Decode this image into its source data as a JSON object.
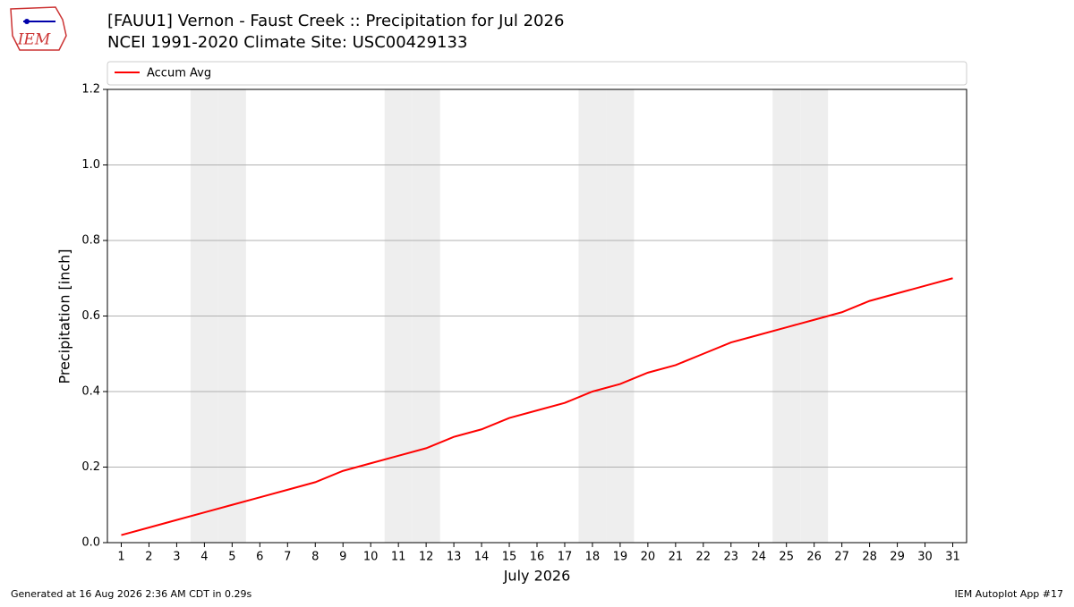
{
  "logo": "IEM",
  "chart_data": {
    "type": "line",
    "title": "[FAUU1] Vernon - Faust Creek :: Precipitation for Jul 2026",
    "subtitle": "NCEI 1991-2020 Climate Site: USC00429133",
    "x_label": "July 2026",
    "y_label": "Precipitation [inch]",
    "x": [
      1,
      2,
      3,
      4,
      5,
      6,
      7,
      8,
      9,
      10,
      11,
      12,
      13,
      14,
      15,
      16,
      17,
      18,
      19,
      20,
      21,
      22,
      23,
      24,
      25,
      26,
      27,
      28,
      29,
      30,
      31
    ],
    "series": [
      {
        "name": "Accum Avg",
        "color": "#ff0000",
        "values": [
          0.02,
          0.04,
          0.06,
          0.08,
          0.1,
          0.12,
          0.14,
          0.16,
          0.19,
          0.21,
          0.23,
          0.25,
          0.28,
          0.3,
          0.33,
          0.35,
          0.37,
          0.4,
          0.42,
          0.45,
          0.47,
          0.5,
          0.53,
          0.55,
          0.57,
          0.59,
          0.61,
          0.64,
          0.66,
          0.68,
          0.7
        ]
      }
    ],
    "xlim": [
      0.5,
      31.5
    ],
    "xticks": [
      1,
      2,
      3,
      4,
      5,
      6,
      7,
      8,
      9,
      10,
      11,
      12,
      13,
      14,
      15,
      16,
      17,
      18,
      19,
      20,
      21,
      22,
      23,
      24,
      25,
      26,
      27,
      28,
      29,
      30,
      31
    ],
    "ylim": [
      0,
      1.2
    ],
    "yticks": [
      {
        "value": 0,
        "label": "0.0"
      },
      0.2,
      0.4,
      0.6,
      0.8,
      {
        "value": 1,
        "label": "1.0"
      },
      1.2
    ],
    "shaded_days": [
      4,
      5,
      11,
      12,
      18,
      19,
      25,
      26
    ],
    "shade_color": "#eeeeee",
    "grid": true,
    "legend": "top"
  },
  "footer_left": "Generated at 16 Aug 2026 2:36 AM CDT in 0.29s",
  "footer_right": "IEM Autoplot App #17"
}
